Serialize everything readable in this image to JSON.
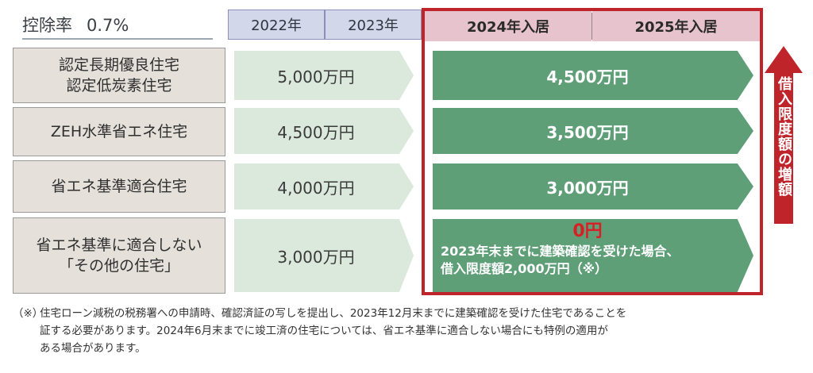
{
  "rate": {
    "label": "控除率",
    "value": "0.7%"
  },
  "header": {
    "years": [
      "2022年",
      "2023年"
    ],
    "residence_years": [
      "2024年入居",
      "2025年入居"
    ]
  },
  "rows": [
    {
      "label_lines": [
        "認定長期優良住宅",
        "認定低炭素住宅"
      ],
      "old_limit": "5,000万円",
      "new_limit": "4,500万円"
    },
    {
      "label_lines": [
        "ZEH水準省エネ住宅"
      ],
      "old_limit": "4,500万円",
      "new_limit": "3,500万円"
    },
    {
      "label_lines": [
        "省エネ基準適合住宅"
      ],
      "old_limit": "4,000万円",
      "new_limit": "3,000万円"
    },
    {
      "label_lines": [
        "省エネ基準に適合しない",
        "「その他の住宅」"
      ],
      "old_limit": "3,000万円",
      "new_limit": "0円",
      "new_note_lines": [
        "2023年末までに建築確認を受けた場合、",
        "借入限度額2,000万円（※）"
      ]
    }
  ],
  "increase_label": "借入限度額の増額",
  "footnote": {
    "mark": "（※）",
    "lines": [
      "住宅ローン減税の税務署への申請時、確認済証の写しを提出し、2023年12月末までに建築確認を受けた住宅であることを",
      "証する必要があります。2024年6月末までに竣工済の住宅については、省エネ基準に適合しない場合にも特例の適用が",
      "ある場合があります。"
    ]
  },
  "colors": {
    "frame": "#c0242b",
    "new_arrow": "#5f9f78",
    "old_arrow": "#dbe8dc",
    "year_header": "#d3d7ea",
    "residence_header": "#e7c4cd",
    "label_cell": "#e6e0db",
    "zero_value": "#d91f26"
  },
  "icons": [
    "up-arrow-icon"
  ]
}
